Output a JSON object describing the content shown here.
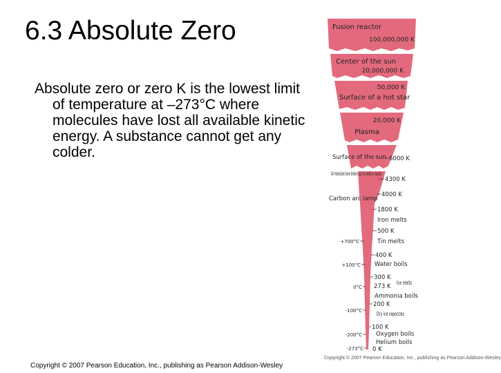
{
  "slide": {
    "title": "6.3 Absolute Zero",
    "body": "Absolute zero or zero K is the lowest limit of temperature at –273°C  where molecules have lost all available kinetic energy. A substance cannot get any colder.",
    "copyright": "Copyright © 2007 Pearson Education, Inc., publishing as Pearson Addison-Wesley"
  },
  "figure": {
    "fill_color": "#e36a7d",
    "segment_labels": [
      {
        "left": "Fusion reactor",
        "right": "100,000,000 K"
      },
      {
        "left": "Center of the sun",
        "right": "20,000,000 K"
      },
      {
        "left": "Surface of a hot star",
        "right": "50,000 K"
      },
      {
        "left": "Plasma",
        "right": "20,000 K"
      }
    ],
    "scale_labels": [
      {
        "left": "Surface of the sun",
        "right": "6000 K"
      },
      {
        "left": "All molecules have broken up; no solids or liquids",
        "right": "4300 K"
      },
      {
        "left": "Carbon arc lamp",
        "right": "4000 K"
      },
      {
        "right": "1800 K"
      },
      {
        "right": "Iron melts"
      },
      {
        "right": "500 K"
      },
      {
        "left": "+700°C",
        "right": "Tin melts"
      },
      {
        "right": "400 K"
      },
      {
        "left": "+100°C",
        "right": "Water boils"
      },
      {
        "right": "300 K"
      },
      {
        "right": "Ice melts"
      },
      {
        "left": "0°C",
        "right": "273 K"
      },
      {
        "right": "Ammonia boils"
      },
      {
        "right": "200 K"
      },
      {
        "left": "-100°C",
        "right": "Dry ice vaporizes"
      },
      {
        "right": "100 K"
      },
      {
        "right": "Oxygen boils"
      },
      {
        "left": "-200°C",
        "right": "Helium boils"
      },
      {
        "left": "-273°C",
        "right": "0 K"
      }
    ],
    "copyright": "Copyright © 2007 Pearson Education, Inc., publishing as Pearson Addison-Wesley"
  }
}
